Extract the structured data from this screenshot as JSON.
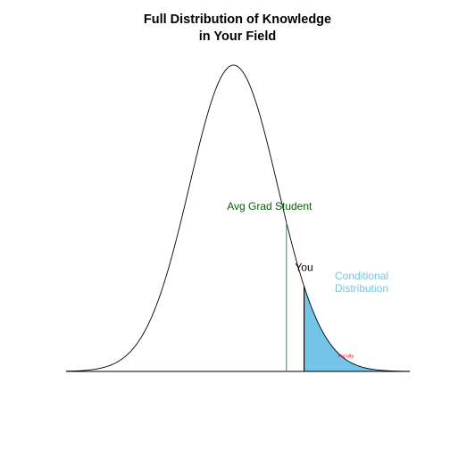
{
  "chart_data": {
    "type": "area",
    "title_lines": [
      "Full Distribution of Knowledge",
      "in Your Field"
    ],
    "xlabel": "",
    "ylabel": "",
    "axes_visible": false,
    "grid": false,
    "xlim": [
      -3.8,
      4.0
    ],
    "ylim": [
      0,
      0.4
    ],
    "curve": {
      "kind": "normal-density",
      "mean": 0,
      "sd": 1
    },
    "markers": [
      {
        "name": "avg-grad-student",
        "x": 1.2,
        "label": "Avg Grad Student",
        "color": "#006400"
      },
      {
        "name": "you",
        "x": 1.6,
        "label": "You",
        "color": "#000000"
      }
    ],
    "shaded_region": {
      "from": 1.6,
      "to": 4.0,
      "label": "Conditional\nDistribution",
      "fill": "#74c4e8",
      "label_color": "#74c4e8"
    },
    "small_annotation": {
      "x": 2.55,
      "text": "Faculty",
      "color": "#ff0000"
    }
  }
}
